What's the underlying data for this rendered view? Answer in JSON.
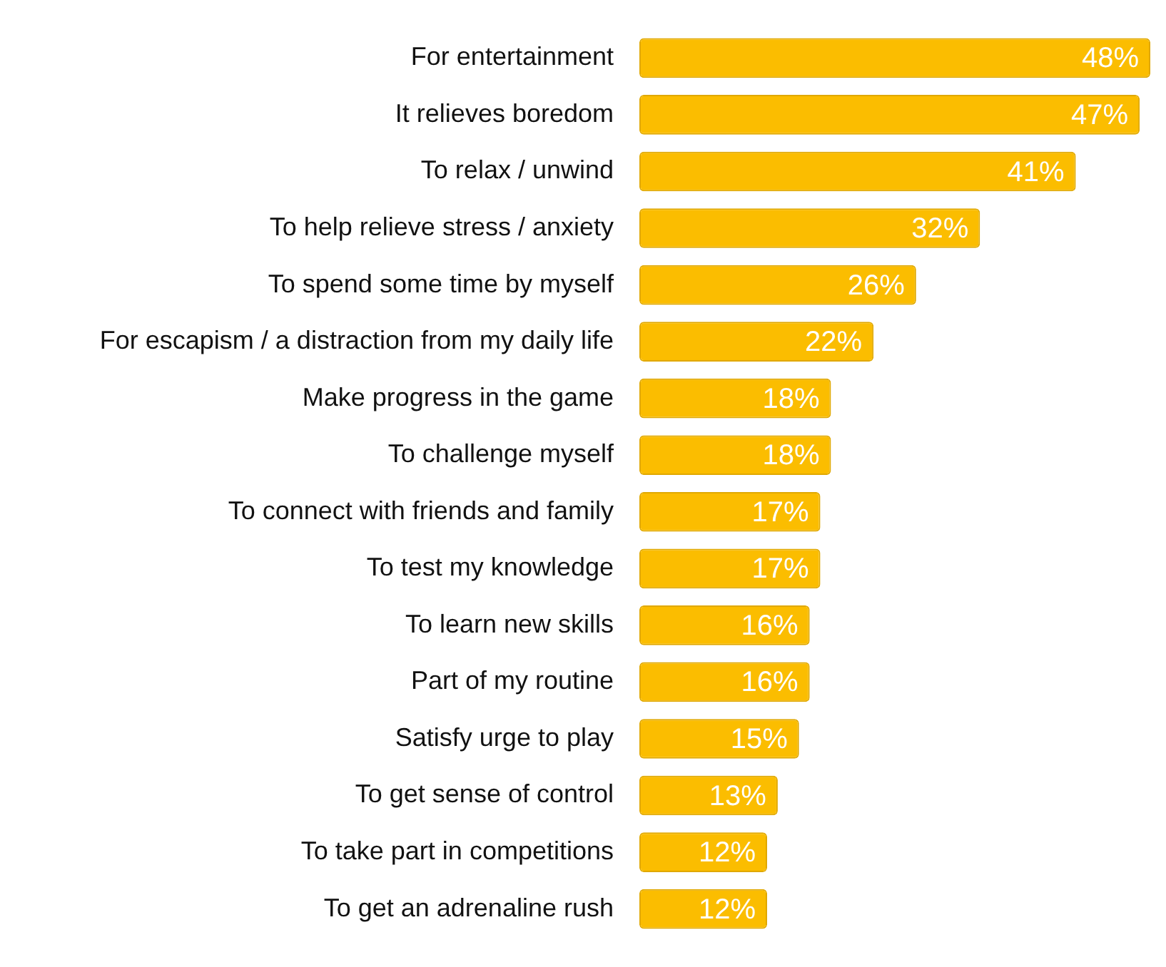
{
  "chart_data": {
    "type": "bar",
    "orientation": "horizontal",
    "categories": [
      "For entertainment",
      "It relieves boredom",
      "To relax / unwind",
      "To help relieve stress / anxiety",
      "To spend some time by myself",
      "For escapism / a distraction from my daily life",
      "Make progress in the game",
      "To challenge myself",
      "To connect with friends and family",
      "To test my knowledge",
      "To learn new skills",
      "Part of my routine",
      "Satisfy urge to play",
      "To get sense of control",
      "To take part in competitions",
      "To get an adrenaline rush"
    ],
    "values": [
      48,
      47,
      41,
      32,
      26,
      22,
      18,
      18,
      17,
      17,
      16,
      16,
      15,
      13,
      12,
      12
    ],
    "value_labels": [
      "48%",
      "47%",
      "41%",
      "32%",
      "26%",
      "22%",
      "18%",
      "18%",
      "17%",
      "17%",
      "16%",
      "16%",
      "15%",
      "13%",
      "12%",
      "12%"
    ],
    "color": "#fbbd00",
    "tick_labels": false,
    "legend": false
  }
}
